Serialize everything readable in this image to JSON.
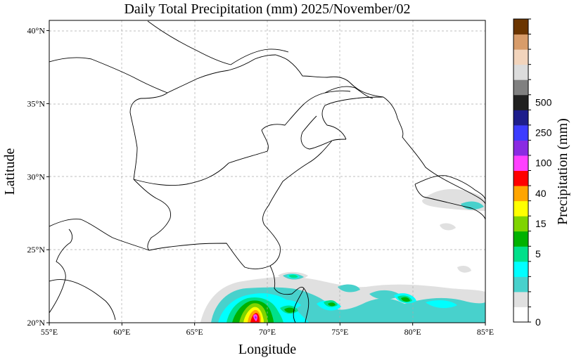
{
  "title": "Daily Total Precipitation (mm)  2025/November/02",
  "map": {
    "extent": {
      "lon_min": 55,
      "lon_max": 85,
      "lat_min": 20,
      "lat_max": 40.7
    },
    "x_ticks": [
      {
        "value": 55,
        "label": "55°E"
      },
      {
        "value": 60,
        "label": "60°E"
      },
      {
        "value": 65,
        "label": "65°E"
      },
      {
        "value": 70,
        "label": "70°E"
      },
      {
        "value": 75,
        "label": "75°E"
      },
      {
        "value": 80,
        "label": "80°E"
      },
      {
        "value": 85,
        "label": "85°E"
      }
    ],
    "y_ticks": [
      {
        "value": 20,
        "label": "20°N"
      },
      {
        "value": 25,
        "label": "25°N"
      },
      {
        "value": 30,
        "label": "30°N"
      },
      {
        "value": 35,
        "label": "35°N"
      },
      {
        "value": 40,
        "label": "40°N"
      }
    ],
    "xlabel": "Longitude",
    "ylabel": "Latitude",
    "gridlines": true
  },
  "colorbar": {
    "label": "Precipitation (mm)",
    "colors": [
      "#ffffff",
      "#e0e0e0",
      "#48d1cc",
      "#00ffff",
      "#00e08a",
      "#00b200",
      "#7fd400",
      "#ffff00",
      "#ffa500",
      "#ff0000",
      "#ff40ff",
      "#8a2be2",
      "#3c3cff",
      "#1e1e8c",
      "#202020",
      "#808080",
      "#dcdcdc",
      "#f2d4bc",
      "#d89c6a",
      "#6b3500"
    ],
    "tick_labels": [
      {
        "index": 0,
        "label": "0"
      },
      {
        "index": 4,
        "label": "5"
      },
      {
        "index": 6,
        "label": "15"
      },
      {
        "index": 8,
        "label": "40"
      },
      {
        "index": 10,
        "label": "100"
      },
      {
        "index": 12,
        "label": "250"
      },
      {
        "index": 14,
        "label": "500"
      }
    ]
  }
}
